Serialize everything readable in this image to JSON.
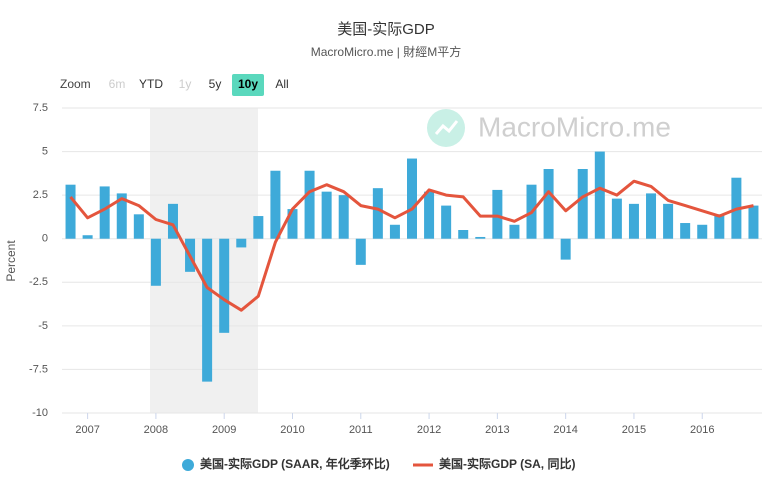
{
  "chart_data": {
    "type": "bar_line",
    "title": "美国-实际GDP",
    "subtitle": "MacroMicro.me | 財經M平方",
    "watermark": "MacroMicro.me",
    "range_selector": {
      "label": "Zoom",
      "buttons": [
        "6m",
        "YTD",
        "1y",
        "5y",
        "10y",
        "All"
      ],
      "selected": "10y",
      "disabled": [
        "6m",
        "1y"
      ]
    },
    "ylabel": "Percent",
    "ylim": [
      -10,
      7.5
    ],
    "yticks": [
      7.5,
      5,
      2.5,
      0,
      -2.5,
      -5,
      -7.5,
      -10
    ],
    "grid": true,
    "categories": [
      null,
      "2007",
      null,
      null,
      null,
      "2008",
      null,
      null,
      null,
      "2009",
      null,
      null,
      null,
      "2010",
      null,
      null,
      null,
      "2011",
      null,
      null,
      null,
      "2012",
      null,
      null,
      null,
      "2013",
      null,
      null,
      null,
      "2014",
      null,
      null,
      null,
      "2015",
      null,
      null,
      null,
      "2016",
      null,
      null,
      null
    ],
    "series": [
      {
        "name": "美国-实际GDP (SAAR, 年化季环比)",
        "type": "bar",
        "color": "#3eaad9",
        "values": [
          3.1,
          0.2,
          3.0,
          2.6,
          1.4,
          -2.7,
          2.0,
          -1.9,
          -8.2,
          -5.4,
          -0.5,
          1.3,
          3.9,
          1.7,
          3.9,
          2.7,
          2.5,
          -1.5,
          2.9,
          0.8,
          4.6,
          2.7,
          1.9,
          0.5,
          0.1,
          2.8,
          0.8,
          3.1,
          4.0,
          -1.2,
          4.0,
          5.0,
          2.3,
          2.0,
          2.6,
          2.0,
          0.9,
          0.8,
          1.4,
          3.5,
          1.9
        ]
      },
      {
        "name": "美国-实际GDP (SA, 同比)",
        "type": "line",
        "color": "#e4553d",
        "values": [
          2.4,
          1.2,
          1.7,
          2.3,
          1.9,
          1.1,
          0.8,
          -1.0,
          -2.8,
          -3.5,
          -4.1,
          -3.3,
          -0.2,
          1.7,
          2.7,
          3.1,
          2.7,
          1.9,
          1.7,
          1.2,
          1.7,
          2.8,
          2.5,
          2.4,
          1.3,
          1.3,
          1.0,
          1.5,
          2.7,
          1.6,
          2.4,
          2.9,
          2.5,
          3.3,
          3.0,
          2.2,
          1.9,
          1.6,
          1.3,
          1.7,
          1.9
        ]
      }
    ]
  }
}
